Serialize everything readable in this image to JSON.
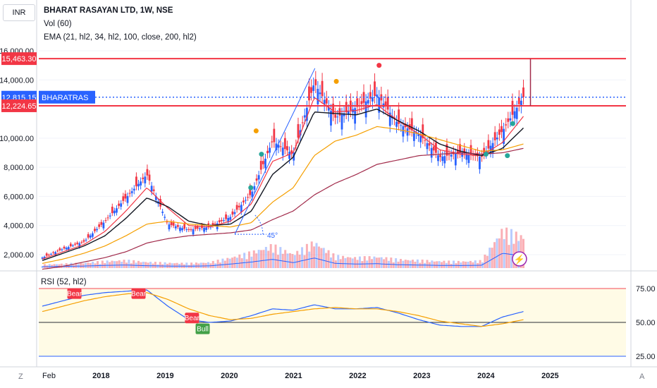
{
  "header": {
    "title": "BHARAT RASAYAN LTD, 1W, NSE",
    "vol": "Vol (60)",
    "ema": "EMA (21, hl2, 34, hl2, 100, close, 200, hl2)",
    "currency": "INR"
  },
  "price_axis": {
    "ticks": [
      "16,000.00",
      "14,000.00",
      "10,000.00",
      "8,000.00",
      "6,000.00",
      "4,000.00",
      "2,000.00"
    ],
    "labels": [
      {
        "text": "15,463.30",
        "color": "#f23645"
      },
      {
        "text": "12,815.15",
        "color": "#2962ff"
      },
      {
        "text": "12,224.65",
        "color": "#f23645"
      }
    ],
    "symbol_tag": "BHARATRAS"
  },
  "rsi_panel": {
    "label": "RSI (52, hl2)",
    "ticks": [
      "75.00",
      "50.00",
      "25.00"
    ],
    "markers": [
      "Bear",
      "Bear",
      "Bear",
      "Bull"
    ]
  },
  "time_axis": {
    "labels": [
      "Feb",
      "2018",
      "2019",
      "2020",
      "2021",
      "2022",
      "2023",
      "2024",
      "2025"
    ],
    "left_button": "Z",
    "right_button": "A"
  },
  "drawing": {
    "angle_label": "45°"
  },
  "colors": {
    "up": "#2962ff",
    "down": "#f23645",
    "ema21": "#f23645",
    "ema34": "#131722",
    "ema100": "#f59f00",
    "ema200": "#a12a4a",
    "rsi": "#2962ff",
    "rsi_ma": "#f59f00",
    "rsi_band": "#fffbe6"
  },
  "chart_data": {
    "type": "candlestick",
    "x": [
      "2017-02",
      "2017-06",
      "2017-10",
      "2018-02",
      "2018-06",
      "2018-10",
      "2019-02",
      "2019-06",
      "2019-10",
      "2020-02",
      "2020-06",
      "2020-10",
      "2021-02",
      "2021-06",
      "2021-10",
      "2022-02",
      "2022-06",
      "2022-10",
      "2023-02",
      "2023-06",
      "2023-10",
      "2024-02",
      "2024-06",
      "2024-08"
    ],
    "series": [
      {
        "name": "close",
        "values": [
          1800,
          2400,
          2900,
          4300,
          5900,
          7500,
          4100,
          3700,
          3900,
          4600,
          6200,
          9800,
          8900,
          13800,
          11400,
          12100,
          13000,
          11000,
          10300,
          8700,
          9000,
          8700,
          10500,
          12815
        ]
      },
      {
        "name": "EMA 21",
        "values": [
          1700,
          2200,
          2700,
          3600,
          5000,
          6600,
          5200,
          4000,
          3900,
          4300,
          5500,
          8400,
          9000,
          12800,
          11800,
          11900,
          12300,
          11200,
          10300,
          9200,
          8900,
          8800,
          9700,
          11500
        ]
      },
      {
        "name": "EMA 34",
        "values": [
          1600,
          2100,
          2600,
          3300,
          4500,
          5900,
          5300,
          4300,
          4000,
          4100,
          5000,
          7500,
          8700,
          11800,
          11700,
          11600,
          12000,
          11200,
          10500,
          9600,
          9100,
          8800,
          9300,
          10700
        ]
      },
      {
        "name": "EMA 100",
        "values": [
          1400,
          1700,
          2100,
          2600,
          3300,
          4100,
          4300,
          4100,
          4000,
          3900,
          4200,
          5600,
          6600,
          8800,
          9800,
          10200,
          10800,
          10600,
          10300,
          9900,
          9500,
          9100,
          9200,
          9600
        ]
      },
      {
        "name": "EMA 200",
        "values": [
          1000,
          1200,
          1500,
          1800,
          2200,
          2800,
          3100,
          3300,
          3400,
          3500,
          3700,
          4400,
          5000,
          6100,
          6900,
          7500,
          8200,
          8500,
          8800,
          8900,
          9000,
          8900,
          9000,
          9300
        ]
      }
    ],
    "rsi": [
      62,
      66,
      70,
      72,
      73,
      74,
      62,
      52,
      50,
      51,
      55,
      60,
      59,
      63,
      60,
      60,
      61,
      57,
      52,
      48,
      47,
      47,
      54,
      58
    ],
    "rsi_ma": [
      58,
      62,
      66,
      69,
      71,
      72,
      67,
      60,
      55,
      52,
      53,
      56,
      58,
      60,
      61,
      60,
      60,
      58,
      55,
      51,
      49,
      47,
      49,
      52
    ],
    "volume": [
      200,
      250,
      300,
      400,
      450,
      350,
      300,
      280,
      330,
      600,
      900,
      1300,
      800,
      1500,
      700,
      600,
      650,
      500,
      450,
      400,
      380,
      420,
      2200,
      1800
    ],
    "horizontal_levels": [
      15463.3,
      12815.15,
      12224.65
    ],
    "ylim": [
      1000,
      16500
    ],
    "rsi_levels": [
      75,
      50,
      25
    ],
    "grid": true
  }
}
